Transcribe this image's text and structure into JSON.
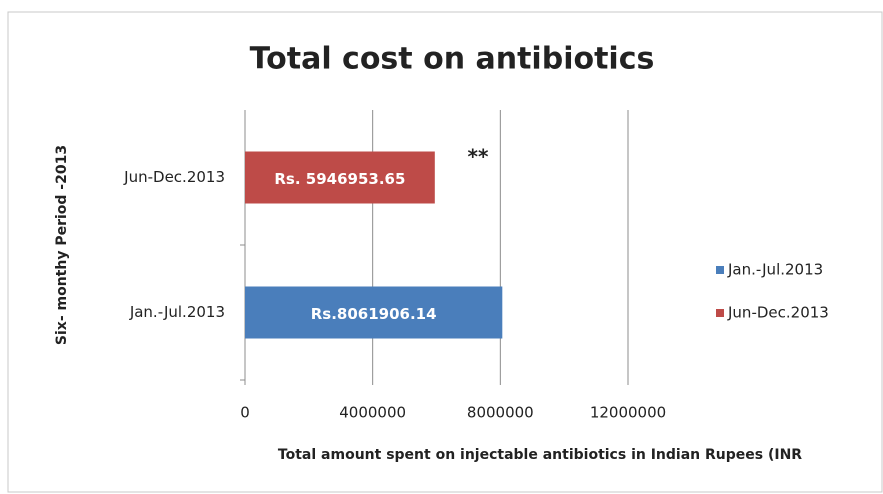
{
  "chart_data": {
    "type": "bar",
    "orientation": "horizontal",
    "title": "Total cost on antibiotics",
    "x_label": "Total amount spent on injectable antibiotics in Indian Rupees (INR",
    "y_label": "Six- monthy Period -2013",
    "categories": [
      "Jan.-Jul.2013",
      "Jun-Dec.2013"
    ],
    "series": [
      {
        "name": "Jan.-Jul.2013",
        "color": "#4a7ebb",
        "values": [
          8061906.14,
          null
        ],
        "value_labels": [
          "Rs.8061906.14",
          null
        ]
      },
      {
        "name": "Jun-Dec.2013",
        "color": "#be4b48",
        "values": [
          null,
          5946953.65
        ],
        "value_labels": [
          null,
          "Rs. 5946953.65"
        ]
      }
    ],
    "annotations": [
      "**"
    ],
    "xlim": [
      0,
      12000000
    ],
    "xticks": [
      0,
      4000000,
      8000000,
      12000000
    ],
    "grid": true,
    "legend": "right"
  }
}
